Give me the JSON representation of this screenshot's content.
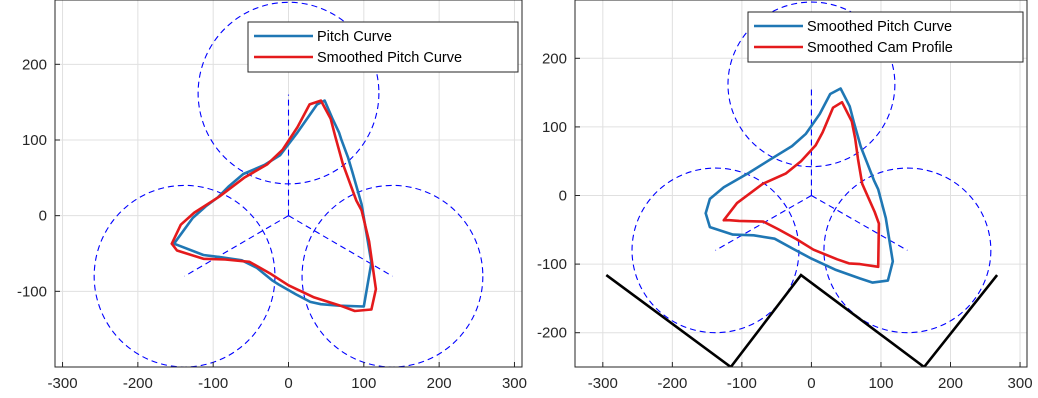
{
  "chart_data": [
    {
      "type": "line",
      "panel": "left",
      "title": "",
      "xlabel": "",
      "ylabel": "",
      "xlim": [
        -310,
        310
      ],
      "ylim": [
        -200,
        285
      ],
      "xticks": [
        -300,
        -200,
        -100,
        0,
        100,
        200,
        300
      ],
      "yticks": [
        -100,
        0,
        100,
        200
      ],
      "grid": true,
      "legend": {
        "placement": "top-right",
        "entries": [
          "Pitch Curve",
          "Smoothed Pitch Curve"
        ]
      },
      "series": [
        {
          "name": "Pitch Curve",
          "color": "#1f77b4",
          "x": [
            -152,
            -127,
            -109,
            -94,
            -80,
            -60,
            -32,
            -11,
            12,
            38,
            48,
            59,
            67,
            70,
            79,
            85,
            97,
            110,
            100,
            68,
            43,
            29,
            10,
            -13,
            -21,
            -42,
            -62,
            -89,
            -113,
            -152
          ],
          "y": [
            -37,
            -3,
            13,
            24,
            38,
            55,
            67,
            80,
            110,
            147,
            152,
            127,
            110,
            101,
            77,
            57,
            15,
            -62,
            -120,
            -119,
            -117,
            -114,
            -104,
            -91,
            -86,
            -69,
            -59,
            -55,
            -52,
            -37
          ]
        },
        {
          "name": "Smoothed Pitch Curve",
          "color": "#e41a1c",
          "x": [
            -155,
            -143,
            -125,
            -92,
            -59,
            -28,
            -8,
            12,
            28,
            43,
            56,
            62,
            72,
            90,
            97,
            107,
            116,
            110,
            88,
            69,
            34,
            0,
            -25,
            -52,
            -84,
            -113,
            -148,
            -155
          ],
          "y": [
            -37,
            -12,
            4,
            25,
            50,
            68,
            87,
            117,
            147,
            152,
            128,
            105,
            69,
            20,
            7,
            -34,
            -97,
            -124,
            -126,
            -119,
            -108,
            -92,
            -76,
            -61,
            -58,
            -57,
            -46,
            -37
          ]
        }
      ],
      "guides": {
        "color": "#0000ff",
        "circles": [
          {
            "cx": 0,
            "cy": 162,
            "r": 120
          },
          {
            "cx": -138,
            "cy": -80,
            "r": 120
          },
          {
            "cx": 138,
            "cy": -80,
            "r": 120
          }
        ],
        "center": [
          0,
          0
        ],
        "spokes": [
          [
            0,
            160
          ],
          [
            -138,
            -80
          ],
          [
            138,
            -80
          ]
        ]
      }
    },
    {
      "type": "line",
      "panel": "right",
      "title": "",
      "xlabel": "",
      "ylabel": "",
      "xlim": [
        -340,
        310
      ],
      "ylim": [
        -250,
        285
      ],
      "xticks": [
        -300,
        -200,
        -100,
        0,
        100,
        200,
        300
      ],
      "yticks": [
        -200,
        -100,
        0,
        100,
        200
      ],
      "grid": true,
      "legend": {
        "placement": "top-right",
        "entries": [
          "Smoothed Pitch Curve",
          "Smoothed Cam Profile"
        ]
      },
      "series": [
        {
          "name": "Smoothed Pitch Curve",
          "color": "#1f77b4",
          "x": [
            -152,
            -146,
            -126,
            -90,
            -60,
            -28,
            -8,
            12,
            27,
            42,
            55,
            61,
            71,
            90,
            96,
            107,
            117,
            110,
            88,
            70,
            34,
            0,
            -26,
            -53,
            -83,
            -113,
            -146,
            -152
          ],
          "y": [
            -26,
            -5,
            12,
            33,
            52,
            72,
            90,
            119,
            148,
            156,
            130,
            107,
            71,
            22,
            9,
            -33,
            -96,
            -124,
            -127,
            -121,
            -108,
            -92,
            -78,
            -63,
            -58,
            -57,
            -46,
            -26
          ]
        },
        {
          "name": "Smoothed Cam Profile",
          "color": "#e41a1c",
          "x": [
            -126,
            -107,
            -70,
            -37,
            -15,
            6,
            16,
            31,
            44,
            58,
            63,
            67,
            73,
            91,
            97,
            96,
            70,
            54,
            37,
            3,
            -21,
            -48,
            -69,
            -104,
            -118,
            -126
          ],
          "y": [
            -36,
            -11,
            17,
            32,
            50,
            73,
            92,
            128,
            136,
            108,
            83,
            53,
            17,
            -24,
            -41,
            -104,
            -100,
            -99,
            -93,
            -79,
            -64,
            -49,
            -38,
            -37,
            -36,
            -36
          ]
        }
      ],
      "guides": {
        "color": "#0000ff",
        "circles": [
          {
            "cx": 0,
            "cy": 162,
            "r": 120
          },
          {
            "cx": -138,
            "cy": -80,
            "r": 120
          },
          {
            "cx": 138,
            "cy": -80,
            "r": 120
          }
        ],
        "center": [
          0,
          0
        ],
        "spokes": [
          [
            0,
            160
          ],
          [
            -138,
            -80
          ],
          [
            138,
            -80
          ]
        ]
      },
      "profile_line": {
        "color": "#000000",
        "x": [
          -295,
          -116,
          -15,
          162,
          267
        ],
        "y": [
          -116,
          -250,
          -116,
          -250,
          -116
        ]
      }
    }
  ]
}
